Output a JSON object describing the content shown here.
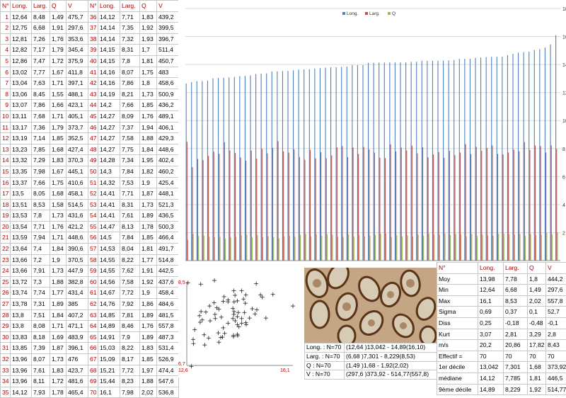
{
  "measure_table": {
    "headers": [
      "N°",
      "Long.",
      "Larg.",
      "Q",
      "V"
    ],
    "rows": [
      [
        "1",
        "12,64",
        "8,48",
        "1,49",
        "475,7"
      ],
      [
        "2",
        "12,75",
        "6,68",
        "1,91",
        "297,6"
      ],
      [
        "3",
        "12,81",
        "7,26",
        "1,76",
        "353,6"
      ],
      [
        "4",
        "12,82",
        "7,17",
        "1,79",
        "345,4"
      ],
      [
        "5",
        "12,86",
        "7,47",
        "1,72",
        "375,9"
      ],
      [
        "6",
        "13,02",
        "7,77",
        "1,67",
        "411,8"
      ],
      [
        "7",
        "13,04",
        "7,63",
        "1,71",
        "397,1"
      ],
      [
        "8",
        "13,06",
        "8,45",
        "1,55",
        "488,1"
      ],
      [
        "9",
        "13,07",
        "7,86",
        "1,66",
        "423,1"
      ],
      [
        "10",
        "13,11",
        "7,68",
        "1,71",
        "405,1"
      ],
      [
        "11",
        "13,17",
        "7,36",
        "1,79",
        "373,7"
      ],
      [
        "12",
        "13,19",
        "7,14",
        "1,85",
        "352,5"
      ],
      [
        "13",
        "13,23",
        "7,85",
        "1,68",
        "427,4"
      ],
      [
        "14",
        "13,32",
        "7,29",
        "1,83",
        "370,3"
      ],
      [
        "15",
        "13,35",
        "7,98",
        "1,67",
        "445,1"
      ],
      [
        "16",
        "13,37",
        "7,66",
        "1,75",
        "410,6"
      ],
      [
        "17",
        "13,5",
        "8,05",
        "1,68",
        "458,1"
      ],
      [
        "18",
        "13,51",
        "8,53",
        "1,58",
        "514,5"
      ],
      [
        "19",
        "13,53",
        "7,8",
        "1,73",
        "431,6"
      ],
      [
        "20",
        "13,54",
        "7,71",
        "1,76",
        "421,2"
      ],
      [
        "21",
        "13,59",
        "7,94",
        "1,71",
        "448,6"
      ],
      [
        "22",
        "13,64",
        "7,4",
        "1,84",
        "390,6"
      ],
      [
        "23",
        "13,66",
        "7,2",
        "1,9",
        "370,5"
      ],
      [
        "24",
        "13,66",
        "7,91",
        "1,73",
        "447,9"
      ],
      [
        "25",
        "13,72",
        "7,3",
        "1,88",
        "382,8"
      ],
      [
        "26",
        "13,74",
        "7,74",
        "1,77",
        "431,4"
      ],
      [
        "27",
        "13,78",
        "7,31",
        "1,89",
        "385"
      ],
      [
        "28",
        "13,8",
        "7,51",
        "1,84",
        "407,2"
      ],
      [
        "29",
        "13,8",
        "8,08",
        "1,71",
        "471,1"
      ],
      [
        "30",
        "13,83",
        "8,18",
        "1,69",
        "483,9"
      ],
      [
        "31",
        "13,85",
        "7,39",
        "1,87",
        "396,1"
      ],
      [
        "32",
        "13,96",
        "8,07",
        "1,73",
        "476"
      ],
      [
        "33",
        "13,96",
        "7,61",
        "1,83",
        "423,7"
      ],
      [
        "34",
        "13,96",
        "8,11",
        "1,72",
        "481,6"
      ],
      [
        "35",
        "14,12",
        "7,93",
        "1,78",
        "465,4"
      ]
    ]
  },
  "measure_table_2": {
    "headers": [
      "N°",
      "Long.",
      "Larg.",
      "Q",
      "V"
    ],
    "rows": [
      [
        "36",
        "14,12",
        "7,71",
        "1,83",
        "439,2"
      ],
      [
        "37",
        "14,14",
        "7,35",
        "1,92",
        "399,5"
      ],
      [
        "38",
        "14,14",
        "7,32",
        "1,93",
        "396,7"
      ],
      [
        "39",
        "14,15",
        "8,31",
        "1,7",
        "511,4"
      ],
      [
        "40",
        "14,15",
        "7,8",
        "1,81",
        "450,7"
      ],
      [
        "41",
        "14,16",
        "8,07",
        "1,75",
        "483"
      ],
      [
        "42",
        "14,16",
        "7,86",
        "1,8",
        "458,6"
      ],
      [
        "43",
        "14,19",
        "8,21",
        "1,73",
        "500,9"
      ],
      [
        "44",
        "14,2",
        "7,66",
        "1,85",
        "436,2"
      ],
      [
        "45",
        "14,27",
        "8,09",
        "1,76",
        "489,1"
      ],
      [
        "46",
        "14,27",
        "7,37",
        "1,94",
        "406,1"
      ],
      [
        "47",
        "14,27",
        "7,58",
        "1,88",
        "429,3"
      ],
      [
        "48",
        "14,27",
        "7,75",
        "1,84",
        "448,6"
      ],
      [
        "49",
        "14,28",
        "7,34",
        "1,95",
        "402,4"
      ],
      [
        "50",
        "14,3",
        "7,84",
        "1,82",
        "460,2"
      ],
      [
        "51",
        "14,32",
        "7,53",
        "1,9",
        "425,4"
      ],
      [
        "52",
        "14,41",
        "7,71",
        "1,87",
        "448,1"
      ],
      [
        "53",
        "14,41",
        "8,31",
        "1,73",
        "521,3"
      ],
      [
        "54",
        "14,41",
        "7,61",
        "1,89",
        "436,5"
      ],
      [
        "55",
        "14,47",
        "8,13",
        "1,78",
        "500,3"
      ],
      [
        "56",
        "14,5",
        "7,84",
        "1,85",
        "466,4"
      ],
      [
        "57",
        "14,53",
        "8,04",
        "1,81",
        "491,7"
      ],
      [
        "58",
        "14,55",
        "8,22",
        "1,77",
        "514,8"
      ],
      [
        "59",
        "14,55",
        "7,62",
        "1,91",
        "442,5"
      ],
      [
        "60",
        "14,56",
        "7,58",
        "1,92",
        "437,6"
      ],
      [
        "61",
        "14,67",
        "7,72",
        "1,9",
        "458,4"
      ],
      [
        "62",
        "14,76",
        "7,92",
        "1,86",
        "484,6"
      ],
      [
        "63",
        "14,85",
        "7,81",
        "1,89",
        "481,5"
      ],
      [
        "64",
        "14,89",
        "8,46",
        "1,76",
        "557,8"
      ],
      [
        "65",
        "14,91",
        "7,9",
        "1,89",
        "487,3"
      ],
      [
        "66",
        "15,03",
        "8,22",
        "1,83",
        "531,4"
      ],
      [
        "67",
        "15,09",
        "8,17",
        "1,85",
        "526,9"
      ],
      [
        "68",
        "15,21",
        "7,72",
        "1,97",
        "474,4"
      ],
      [
        "69",
        "15,44",
        "8,23",
        "1,88",
        "547,6"
      ],
      [
        "70",
        "16,1",
        "7,98",
        "2,02",
        "536,8"
      ]
    ]
  },
  "chart_data": [
    {
      "type": "bar",
      "series": [
        {
          "name": "Long.",
          "color": "#4f81bd"
        },
        {
          "name": "Larg.",
          "color": "#c0504d"
        },
        {
          "name": "Q",
          "color": "#9bbb59"
        }
      ],
      "ylim": [
        0,
        18
      ],
      "yticks": [
        "0",
        "2",
        "4",
        "6",
        "8",
        "10",
        "12",
        "14",
        "16",
        "18"
      ],
      "grid": true,
      "legend": "top-center"
    },
    {
      "type": "scatter",
      "xlabel_min": "12,6",
      "xlabel_max": "16,1",
      "ylabel_max": "8,5",
      "ylabel_min": "6,7"
    }
  ],
  "stats": {
    "headers": [
      "N°",
      "Long.",
      "Larg.",
      "Q",
      "V"
    ],
    "rows": [
      [
        "Moy",
        "13,98",
        "7,78",
        "1,8",
        "444,2"
      ],
      [
        "Min",
        "12,64",
        "6,68",
        "1,49",
        "297,6"
      ],
      [
        "Max",
        "16,1",
        "8,53",
        "2,02",
        "557,8"
      ],
      [
        "Sigma",
        "0,69",
        "0,37",
        "0,1",
        "52,7"
      ],
      [
        "Diss",
        "0,25",
        "-0,18",
        "-0,48",
        "-0,1"
      ],
      [
        "Kurt",
        "3,07",
        "2,81",
        "3,29",
        "2,8"
      ],
      [
        "m/s",
        "20,2",
        "20,86",
        "17,82",
        "8,43"
      ],
      [
        "Effectif =",
        "70",
        "70",
        "70",
        "70"
      ],
      [
        "1er décile",
        "13,042",
        "7,301",
        "1,68",
        "373,92"
      ],
      [
        "médiane",
        "14,12",
        "7,785",
        "1,81",
        "446,5"
      ],
      [
        "9ème décile",
        "14,89",
        "8,229",
        "1,92",
        "514,77"
      ]
    ]
  },
  "ci": [
    [
      "Long. : N=70",
      "(12,64 )13,042 - 14,89(16,10)"
    ],
    [
      "Larg. : N=70",
      "(6,68 )7,301 - 8,229(8,53)"
    ],
    [
      "Q : N=70",
      "(1,49 )1,68 - 1,92(2,02)"
    ],
    [
      "V : N=70",
      "(297,6 )373,92 - 514,77(557,8)"
    ]
  ],
  "colors": {
    "long": "#4f81bd",
    "larg": "#c0504d",
    "q": "#9bbb59",
    "red": "#b00000"
  }
}
